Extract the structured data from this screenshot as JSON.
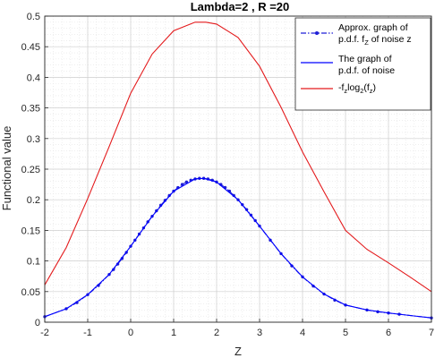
{
  "chart_data": {
    "type": "line",
    "title": "Lambda=2 , R =20",
    "xlabel": "Z",
    "ylabel": "Functional value",
    "xlim": [
      -2,
      7
    ],
    "ylim": [
      0,
      0.5
    ],
    "xticks": [
      "-2",
      "-1",
      "0",
      "1",
      "2",
      "3",
      "4",
      "5",
      "6",
      "7"
    ],
    "yticks": [
      "0",
      "0.05",
      "0.1",
      "0.15",
      "0.2",
      "0.25",
      "0.3",
      "0.35",
      "0.4",
      "0.45",
      "0.5"
    ],
    "grid": true,
    "legend_position": "top-right",
    "series": [
      {
        "name": "Approx. graph of p.d.f. f_Z of noise z",
        "legend_lines": [
          "Approx. graph of",
          "p.d.f.  f",
          "Z",
          " of noise z"
        ],
        "color": "#1f1fd6",
        "style": "dash-dot-markers",
        "x": [
          -2,
          -1.5,
          -1.25,
          -1,
          -0.75,
          -0.5,
          -0.4,
          -0.3,
          -0.2,
          -0.1,
          0,
          0.1,
          0.2,
          0.3,
          0.4,
          0.5,
          0.6,
          0.7,
          0.8,
          0.9,
          1.0,
          1.1,
          1.2,
          1.3,
          1.4,
          1.5,
          1.6,
          1.7,
          1.8,
          1.9,
          2.0,
          2.1,
          2.2,
          2.3,
          2.4,
          2.5,
          2.6,
          2.7,
          2.8,
          2.9,
          3.0,
          3.25,
          3.5,
          3.75,
          4.0,
          4.25,
          4.5,
          4.75,
          5.0,
          5.5,
          5.75,
          6.0,
          6.25,
          7.0
        ],
        "y": [
          0.009,
          0.022,
          0.032,
          0.045,
          0.06,
          0.078,
          0.086,
          0.095,
          0.104,
          0.114,
          0.124,
          0.134,
          0.144,
          0.154,
          0.164,
          0.173,
          0.182,
          0.191,
          0.199,
          0.207,
          0.214,
          0.22,
          0.225,
          0.229,
          0.232,
          0.234,
          0.235,
          0.235,
          0.234,
          0.232,
          0.229,
          0.225,
          0.22,
          0.214,
          0.207,
          0.2,
          0.192,
          0.184,
          0.175,
          0.166,
          0.157,
          0.134,
          0.112,
          0.092,
          0.074,
          0.059,
          0.046,
          0.036,
          0.028,
          0.02,
          0.017,
          0.015,
          0.013,
          0.007
        ]
      },
      {
        "name": "The graph of p.d.f. of noise",
        "legend_lines": [
          "The graph of",
          "p.d.f. of noise"
        ],
        "color": "#0000ff",
        "style": "solid",
        "x": [
          -2,
          -1.5,
          -1,
          -0.5,
          0,
          0.5,
          1,
          1.5,
          1.7,
          2,
          2.5,
          3,
          3.5,
          4,
          4.5,
          5,
          5.5,
          6,
          6.5,
          7
        ],
        "y": [
          0.009,
          0.022,
          0.045,
          0.078,
          0.124,
          0.173,
          0.214,
          0.234,
          0.235,
          0.229,
          0.2,
          0.157,
          0.112,
          0.074,
          0.046,
          0.028,
          0.02,
          0.015,
          0.011,
          0.007
        ]
      },
      {
        "name": "-f_z log_2(f_z)",
        "legend_parts": [
          "-f",
          "z",
          "log",
          "2",
          "(f",
          "z",
          ")"
        ],
        "color": "#e41a1c",
        "style": "solid",
        "x": [
          -2,
          -1.5,
          -1,
          -0.5,
          0,
          0.5,
          1,
          1.5,
          1.75,
          2,
          2.5,
          3,
          3.5,
          4,
          4.5,
          5,
          5.5,
          6,
          6.5,
          7
        ],
        "y": [
          0.061,
          0.122,
          0.202,
          0.287,
          0.374,
          0.438,
          0.476,
          0.49,
          0.49,
          0.487,
          0.465,
          0.418,
          0.351,
          0.278,
          0.213,
          0.15,
          0.119,
          0.097,
          0.074,
          0.05
        ]
      }
    ]
  }
}
